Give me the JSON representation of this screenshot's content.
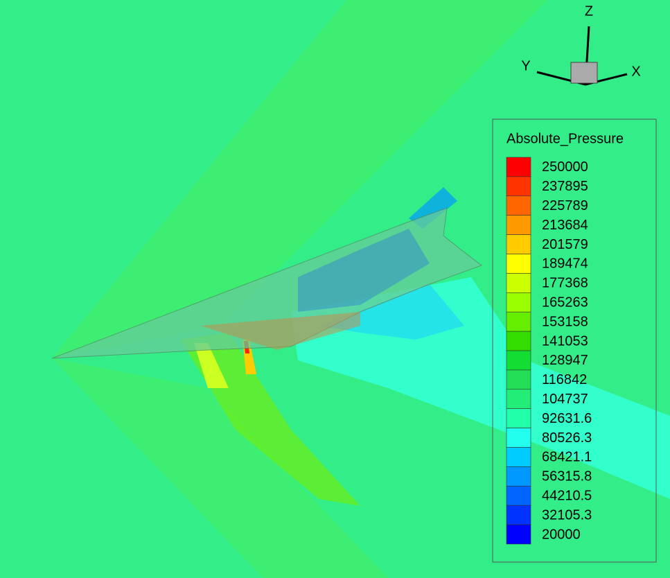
{
  "axes_triad": {
    "x": "X",
    "y": "Y",
    "z": "Z"
  },
  "legend": {
    "title": "Absolute_Pressure",
    "levels": [
      {
        "label": "250000",
        "color": "#ff0000"
      },
      {
        "label": "237895",
        "color": "#ff3300"
      },
      {
        "label": "225789",
        "color": "#ff6600"
      },
      {
        "label": "213684",
        "color": "#ff9900"
      },
      {
        "label": "201579",
        "color": "#ffcc00"
      },
      {
        "label": "189474",
        "color": "#ffff00"
      },
      {
        "label": "177368",
        "color": "#ccff00"
      },
      {
        "label": "165263",
        "color": "#99ff00"
      },
      {
        "label": "153158",
        "color": "#66ee00"
      },
      {
        "label": "141053",
        "color": "#33dd00"
      },
      {
        "label": "128947",
        "color": "#11dd33"
      },
      {
        "label": "116842",
        "color": "#22dd55"
      },
      {
        "label": "104737",
        "color": "#22ee77"
      },
      {
        "label": "92631.6",
        "color": "#22ffaa"
      },
      {
        "label": "80526.3",
        "color": "#22ffee"
      },
      {
        "label": "68421.1",
        "color": "#00ccff"
      },
      {
        "label": "56315.8",
        "color": "#0099ff"
      },
      {
        "label": "44210.5",
        "color": "#0066ff"
      },
      {
        "label": "32105.3",
        "color": "#0033ff"
      },
      {
        "label": "20000",
        "color": "#0000ff"
      }
    ]
  }
}
